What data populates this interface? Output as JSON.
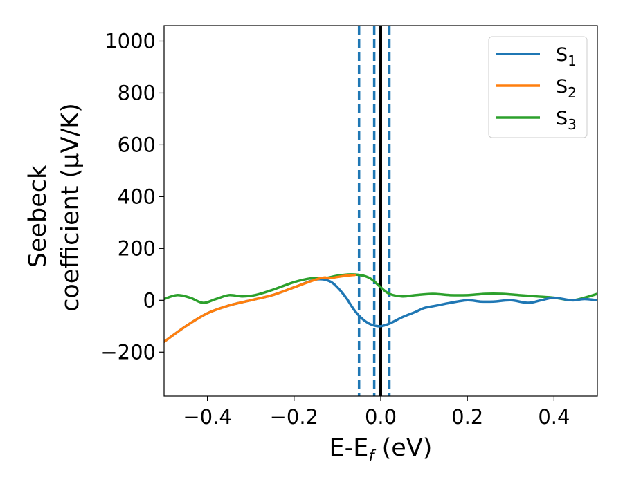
{
  "chart_data": {
    "type": "line",
    "xlabel": "E-E",
    "xlabel_sub": "f",
    "xlabel_unit": " (eV)",
    "ylabel_line1": "Seebeck",
    "ylabel_line2": "coefficient  (μV/K)",
    "xlim": [
      -0.5,
      0.5
    ],
    "ylim": [
      -370,
      1060
    ],
    "xticks": [
      -0.4,
      -0.2,
      0.0,
      0.2,
      0.4
    ],
    "xtick_labels": [
      "−0.4",
      "−0.2",
      "0.0",
      "0.2",
      "0.4"
    ],
    "yticks": [
      -200,
      0,
      200,
      400,
      600,
      800,
      1000
    ],
    "ytick_labels": [
      "−200",
      "0",
      "200",
      "400",
      "600",
      "800",
      "1000"
    ],
    "vlines": [
      {
        "x": 0.0,
        "style": "solid",
        "color": "#000000"
      },
      {
        "x": -0.05,
        "style": "dashed",
        "color": "#1f77b4"
      },
      {
        "x": -0.015,
        "style": "dashed",
        "color": "#1f77b4"
      },
      {
        "x": 0.02,
        "style": "dashed",
        "color": "#1f77b4"
      }
    ],
    "legend_position": "top-right",
    "series": [
      {
        "name": "S",
        "sub": "1",
        "color": "#1f77b4",
        "x": [
          -0.5,
          -0.45,
          -0.4,
          -0.35,
          -0.3,
          -0.25,
          -0.2,
          -0.15,
          -0.12,
          -0.1,
          -0.08,
          -0.06,
          -0.04,
          -0.02,
          0.0,
          0.02,
          0.05,
          0.08,
          0.1,
          0.13,
          0.16,
          0.2,
          0.23,
          0.26,
          0.3,
          0.34,
          0.37,
          0.4,
          0.44,
          0.47,
          0.5
        ],
        "y": [
          -160,
          -100,
          -50,
          -20,
          0,
          20,
          50,
          80,
          75,
          50,
          10,
          -40,
          -75,
          -95,
          -100,
          -90,
          -65,
          -45,
          -30,
          -20,
          -10,
          0,
          -5,
          -5,
          0,
          -10,
          0,
          10,
          0,
          5,
          0
        ]
      },
      {
        "name": "S",
        "sub": "2",
        "color": "#ff7f0e",
        "x": [
          -0.5,
          -0.45,
          -0.4,
          -0.35,
          -0.3,
          -0.25,
          -0.2,
          -0.15,
          -0.13,
          -0.12,
          -0.1,
          -0.08,
          -0.06
        ],
        "y": [
          -160,
          -100,
          -50,
          -20,
          0,
          20,
          50,
          80,
          88,
          85,
          90,
          95,
          98
        ]
      },
      {
        "name": "S",
        "sub": "3",
        "color": "#2ca02c",
        "x": [
          -0.5,
          -0.47,
          -0.44,
          -0.41,
          -0.38,
          -0.35,
          -0.32,
          -0.29,
          -0.25,
          -0.2,
          -0.16,
          -0.13,
          -0.1,
          -0.07,
          -0.04,
          -0.02,
          0.0,
          0.02,
          0.05,
          0.08,
          0.12,
          0.16,
          0.2,
          0.24,
          0.28,
          0.32,
          0.36,
          0.4,
          0.44,
          0.47,
          0.5
        ],
        "y": [
          5,
          20,
          10,
          -10,
          5,
          20,
          15,
          20,
          40,
          70,
          85,
          85,
          95,
          100,
          95,
          80,
          50,
          25,
          15,
          20,
          25,
          20,
          20,
          25,
          25,
          20,
          15,
          10,
          0,
          10,
          25
        ]
      }
    ]
  }
}
